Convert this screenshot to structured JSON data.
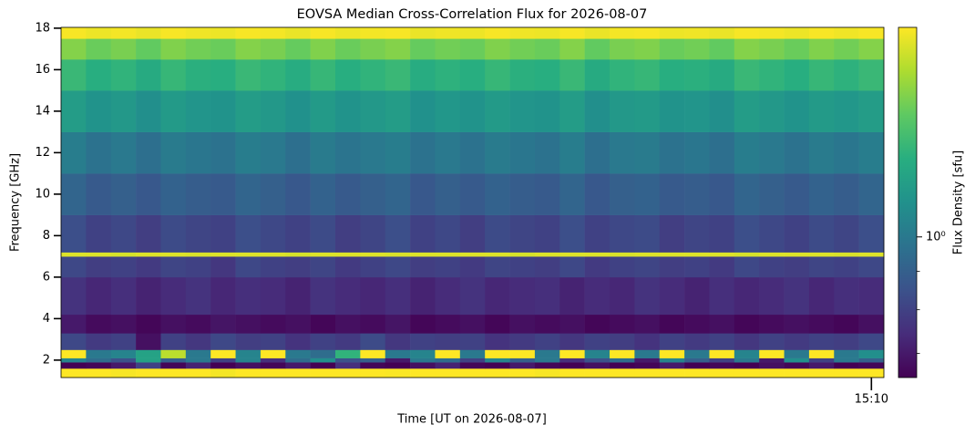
{
  "chart_data": {
    "type": "heatmap",
    "title": "EOVSA Median Cross-Correlation Flux for 2026-08-07",
    "xlabel": "Time [UT on 2026-08-07]",
    "ylabel": "Frequency [GHz]",
    "colorbar_label": "Flux Density [sfu]",
    "colormap": "viridis",
    "color_scale": "log",
    "x": [
      878,
      879,
      880,
      881,
      882,
      883,
      884,
      885,
      886,
      887,
      888,
      889,
      890,
      891,
      892,
      893,
      894,
      895,
      896,
      897,
      898,
      899,
      900,
      901,
      902,
      903,
      904,
      905,
      906,
      907,
      908,
      909,
      910
    ],
    "xlim": [
      877.5,
      910.5
    ],
    "xticks": [
      {
        "value": 910,
        "label": "15:10"
      }
    ],
    "y_edges": [
      1.16,
      1.6,
      1.9,
      2.1,
      2.5,
      3.3,
      4.2,
      6,
      7,
      7.2,
      9,
      11,
      13,
      15,
      16.5,
      17.5,
      18.04
    ],
    "ylim": [
      1.16,
      18.04
    ],
    "yticks": [
      2,
      4,
      6,
      8,
      10,
      12,
      14,
      16,
      18
    ],
    "clim": [
      0.65,
      1.9
    ],
    "cticks": [
      {
        "value": 1,
        "label": "10⁰"
      }
    ],
    "cminor_ticks": [
      0.7,
      0.8,
      0.9
    ],
    "values": [
      [
        1.9,
        1.9,
        1.88,
        1.9,
        1.9,
        1.9,
        1.87,
        1.9,
        1.9,
        1.9,
        1.9,
        1.9,
        1.9,
        1.89,
        1.9,
        1.9,
        1.9,
        1.9,
        1.9,
        1.88,
        1.9,
        1.9,
        1.9,
        1.9,
        1.9,
        1.9,
        1.9,
        1.9,
        1.9,
        1.9,
        1.9,
        1.9,
        1.9
      ],
      [
        0.65,
        0.66,
        0.7,
        0.8,
        0.66,
        0.72,
        0.65,
        0.68,
        0.66,
        0.7,
        0.65,
        0.75,
        0.66,
        0.65,
        0.68,
        0.72,
        0.66,
        0.65,
        0.7,
        0.66,
        0.65,
        0.68,
        0.65,
        0.66,
        0.7,
        0.65,
        0.66,
        0.65,
        0.68,
        0.66,
        0.7,
        0.65,
        0.66
      ],
      [
        1.05,
        0.95,
        0.85,
        1.2,
        0.9,
        1.0,
        0.8,
        1.05,
        0.75,
        0.95,
        1.1,
        0.85,
        0.9,
        0.7,
        1.0,
        0.95,
        0.8,
        1.05,
        0.9,
        1.0,
        0.75,
        0.85,
        0.95,
        0.7,
        1.05,
        0.9,
        0.8,
        1.0,
        0.7,
        1.1,
        0.8,
        1.0,
        0.9
      ],
      [
        1.9,
        1.0,
        1.05,
        1.2,
        1.7,
        1.0,
        1.9,
        1.05,
        1.9,
        1.0,
        0.95,
        1.3,
        1.9,
        1.0,
        1.05,
        1.9,
        1.0,
        1.9,
        1.9,
        1.0,
        1.9,
        1.05,
        1.9,
        1.0,
        1.9,
        1.0,
        1.9,
        1.05,
        1.9,
        1.0,
        1.9,
        1.0,
        1.1
      ],
      [
        0.82,
        0.78,
        0.8,
        0.68,
        0.8,
        0.77,
        0.82,
        0.79,
        0.8,
        0.76,
        0.8,
        0.78,
        0.83,
        0.77,
        0.8,
        0.79,
        0.8,
        0.76,
        0.78,
        0.8,
        0.77,
        0.8,
        0.79,
        0.76,
        0.8,
        0.78,
        0.8,
        0.77,
        0.8,
        0.78,
        0.8,
        0.79,
        0.82
      ],
      [
        0.7,
        0.67,
        0.68,
        0.66,
        0.68,
        0.67,
        0.69,
        0.68,
        0.67,
        0.68,
        0.66,
        0.68,
        0.67,
        0.69,
        0.66,
        0.67,
        0.68,
        0.66,
        0.68,
        0.67,
        0.68,
        0.66,
        0.67,
        0.68,
        0.66,
        0.67,
        0.68,
        0.66,
        0.67,
        0.68,
        0.67,
        0.66,
        0.68
      ],
      [
        0.76,
        0.73,
        0.75,
        0.72,
        0.74,
        0.76,
        0.73,
        0.75,
        0.74,
        0.72,
        0.76,
        0.74,
        0.73,
        0.75,
        0.72,
        0.74,
        0.76,
        0.73,
        0.74,
        0.75,
        0.72,
        0.74,
        0.73,
        0.76,
        0.74,
        0.72,
        0.75,
        0.73,
        0.74,
        0.76,
        0.73,
        0.75,
        0.74
      ],
      [
        0.82,
        0.79,
        0.8,
        0.78,
        0.81,
        0.8,
        0.77,
        0.82,
        0.8,
        0.79,
        0.81,
        0.78,
        0.8,
        0.82,
        0.79,
        0.8,
        0.78,
        0.81,
        0.8,
        0.79,
        0.82,
        0.78,
        0.8,
        0.81,
        0.79,
        0.8,
        0.78,
        0.82,
        0.8,
        0.79,
        0.81,
        0.8,
        0.82
      ],
      [
        1.8,
        1.8,
        1.78,
        1.8,
        1.8,
        1.79,
        1.8,
        1.8,
        1.8,
        1.78,
        1.8,
        1.8,
        1.8,
        1.79,
        1.8,
        1.8,
        1.8,
        1.8,
        1.78,
        1.8,
        1.8,
        1.8,
        1.79,
        1.8,
        1.8,
        1.8,
        1.8,
        1.78,
        1.8,
        1.8,
        1.8,
        1.79,
        1.8
      ],
      [
        0.84,
        0.8,
        0.82,
        0.79,
        0.83,
        0.81,
        0.8,
        0.84,
        0.82,
        0.8,
        0.83,
        0.79,
        0.81,
        0.84,
        0.8,
        0.82,
        0.79,
        0.83,
        0.81,
        0.8,
        0.84,
        0.8,
        0.82,
        0.83,
        0.79,
        0.81,
        0.8,
        0.84,
        0.82,
        0.8,
        0.83,
        0.81,
        0.84
      ],
      [
        0.92,
        0.88,
        0.9,
        0.87,
        0.91,
        0.89,
        0.88,
        0.92,
        0.9,
        0.87,
        0.91,
        0.88,
        0.9,
        0.92,
        0.87,
        0.9,
        0.88,
        0.91,
        0.89,
        0.88,
        0.92,
        0.87,
        0.9,
        0.91,
        0.88,
        0.89,
        0.87,
        0.92,
        0.9,
        0.88,
        0.91,
        0.89,
        0.92
      ],
      [
        1.02,
        0.97,
        1.0,
        0.96,
        1.01,
        0.99,
        0.97,
        1.02,
        1.0,
        0.96,
        1.01,
        0.98,
        1.0,
        1.02,
        0.97,
        1.0,
        0.97,
        1.01,
        0.99,
        0.97,
        1.02,
        0.96,
        1.0,
        1.01,
        0.97,
        0.99,
        0.96,
        1.02,
        1.0,
        0.97,
        1.01,
        0.99,
        1.02
      ],
      [
        1.17,
        1.12,
        1.15,
        1.1,
        1.16,
        1.13,
        1.12,
        1.17,
        1.15,
        1.11,
        1.16,
        1.12,
        1.15,
        1.17,
        1.11,
        1.14,
        1.12,
        1.16,
        1.13,
        1.12,
        1.17,
        1.1,
        1.15,
        1.16,
        1.12,
        1.13,
        1.1,
        1.17,
        1.15,
        1.12,
        1.16,
        1.14,
        1.17
      ],
      [
        1.33,
        1.27,
        1.3,
        1.25,
        1.32,
        1.28,
        1.27,
        1.33,
        1.3,
        1.26,
        1.32,
        1.27,
        1.3,
        1.33,
        1.26,
        1.29,
        1.27,
        1.32,
        1.28,
        1.27,
        1.33,
        1.25,
        1.3,
        1.32,
        1.27,
        1.28,
        1.25,
        1.33,
        1.3,
        1.27,
        1.32,
        1.29,
        1.33
      ],
      [
        1.55,
        1.48,
        1.52,
        1.46,
        1.54,
        1.5,
        1.48,
        1.55,
        1.52,
        1.47,
        1.54,
        1.48,
        1.52,
        1.55,
        1.47,
        1.5,
        1.48,
        1.54,
        1.5,
        1.48,
        1.55,
        1.46,
        1.52,
        1.54,
        1.48,
        1.5,
        1.46,
        1.55,
        1.52,
        1.48,
        1.54,
        1.5,
        1.55
      ],
      [
        1.88,
        1.85,
        1.87,
        1.84,
        1.88,
        1.86,
        1.85,
        1.88,
        1.87,
        1.84,
        1.88,
        1.85,
        1.87,
        1.88,
        1.84,
        1.86,
        1.85,
        1.88,
        1.86,
        1.85,
        1.88,
        1.84,
        1.87,
        1.88,
        1.85,
        1.86,
        1.84,
        1.88,
        1.87,
        1.85,
        1.88,
        1.86,
        1.88
      ]
    ]
  }
}
